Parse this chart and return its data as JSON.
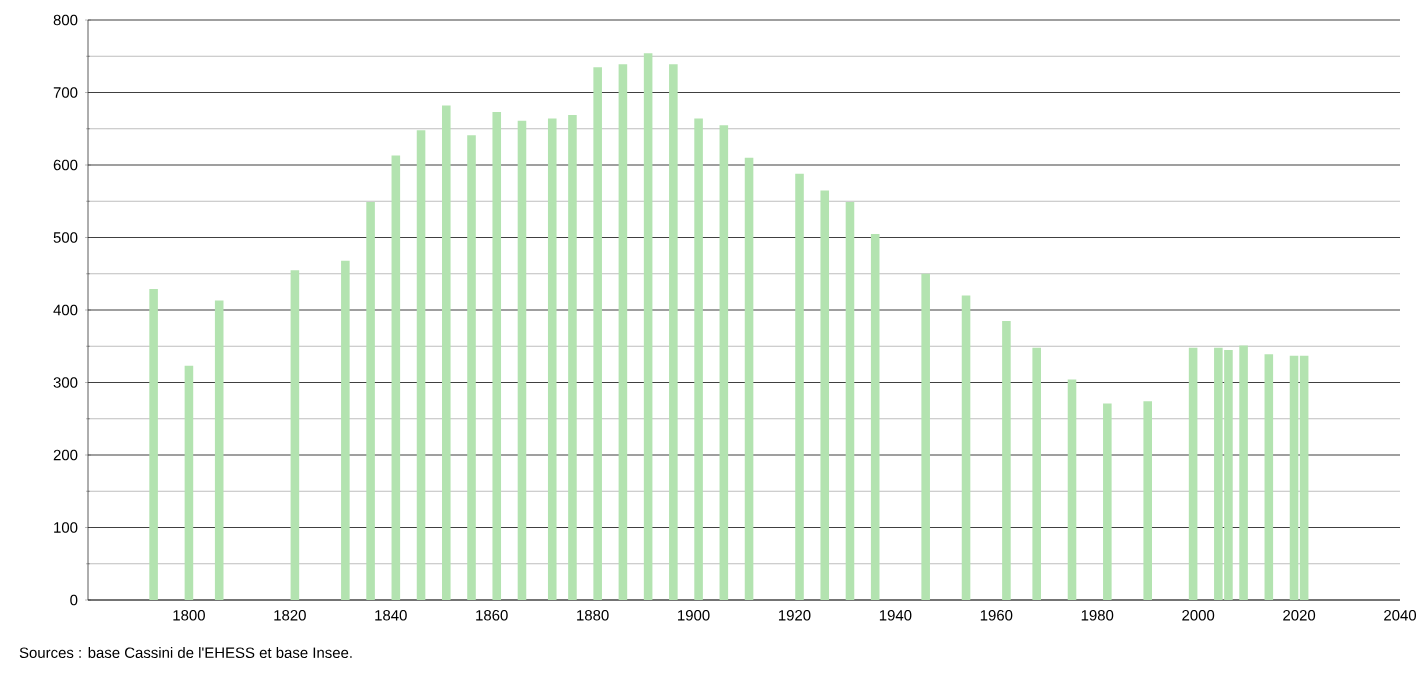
{
  "chart_data": {
    "type": "bar",
    "x": [
      1793,
      1800,
      1806,
      1821,
      1831,
      1836,
      1841,
      1846,
      1851,
      1856,
      1861,
      1866,
      1872,
      1876,
      1881,
      1886,
      1891,
      1896,
      1901,
      1906,
      1911,
      1921,
      1926,
      1931,
      1936,
      1946,
      1954,
      1962,
      1968,
      1975,
      1982,
      1990,
      1999,
      2004,
      2006,
      2009,
      2014,
      2019,
      2021
    ],
    "values": [
      429,
      323,
      413,
      455,
      468,
      549,
      613,
      648,
      682,
      641,
      673,
      661,
      664,
      669,
      735,
      739,
      754,
      739,
      664,
      655,
      610,
      588,
      565,
      549,
      505,
      450,
      420,
      385,
      348,
      304,
      271,
      274,
      348,
      348,
      345,
      351,
      339,
      337,
      337
    ],
    "color": "#b3e3b0",
    "xlim": [
      1780,
      2040
    ],
    "ylim": [
      0,
      800
    ],
    "xticks": [
      1800,
      1820,
      1840,
      1860,
      1880,
      1900,
      1920,
      1940,
      1960,
      1980,
      2000,
      2020,
      2040
    ],
    "yticks": [
      0,
      100,
      200,
      300,
      400,
      500,
      600,
      700,
      800
    ],
    "grid": "y",
    "annotations": [
      "Sources : base Cassini de l'EHESS et base Insee."
    ]
  }
}
